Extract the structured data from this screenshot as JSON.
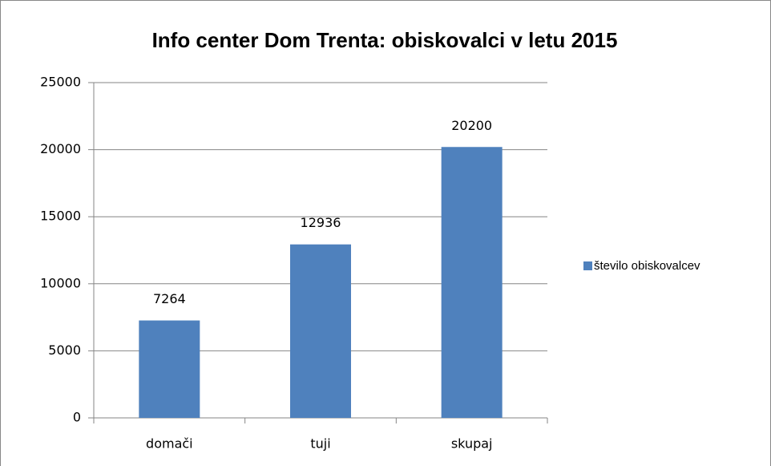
{
  "chart_data": {
    "type": "bar",
    "title": "Info center Dom Trenta: obiskovalci v letu 2015",
    "categories": [
      "domači",
      "tuji",
      "skupaj"
    ],
    "series": [
      {
        "name": "število obiskovalcev",
        "color": "#4f81bd",
        "values": [
          7264,
          12936,
          20200
        ]
      }
    ],
    "ylim": [
      0,
      25000
    ],
    "yticks": [
      0,
      5000,
      10000,
      15000,
      20000,
      25000
    ],
    "grid": true,
    "legend": "right"
  }
}
